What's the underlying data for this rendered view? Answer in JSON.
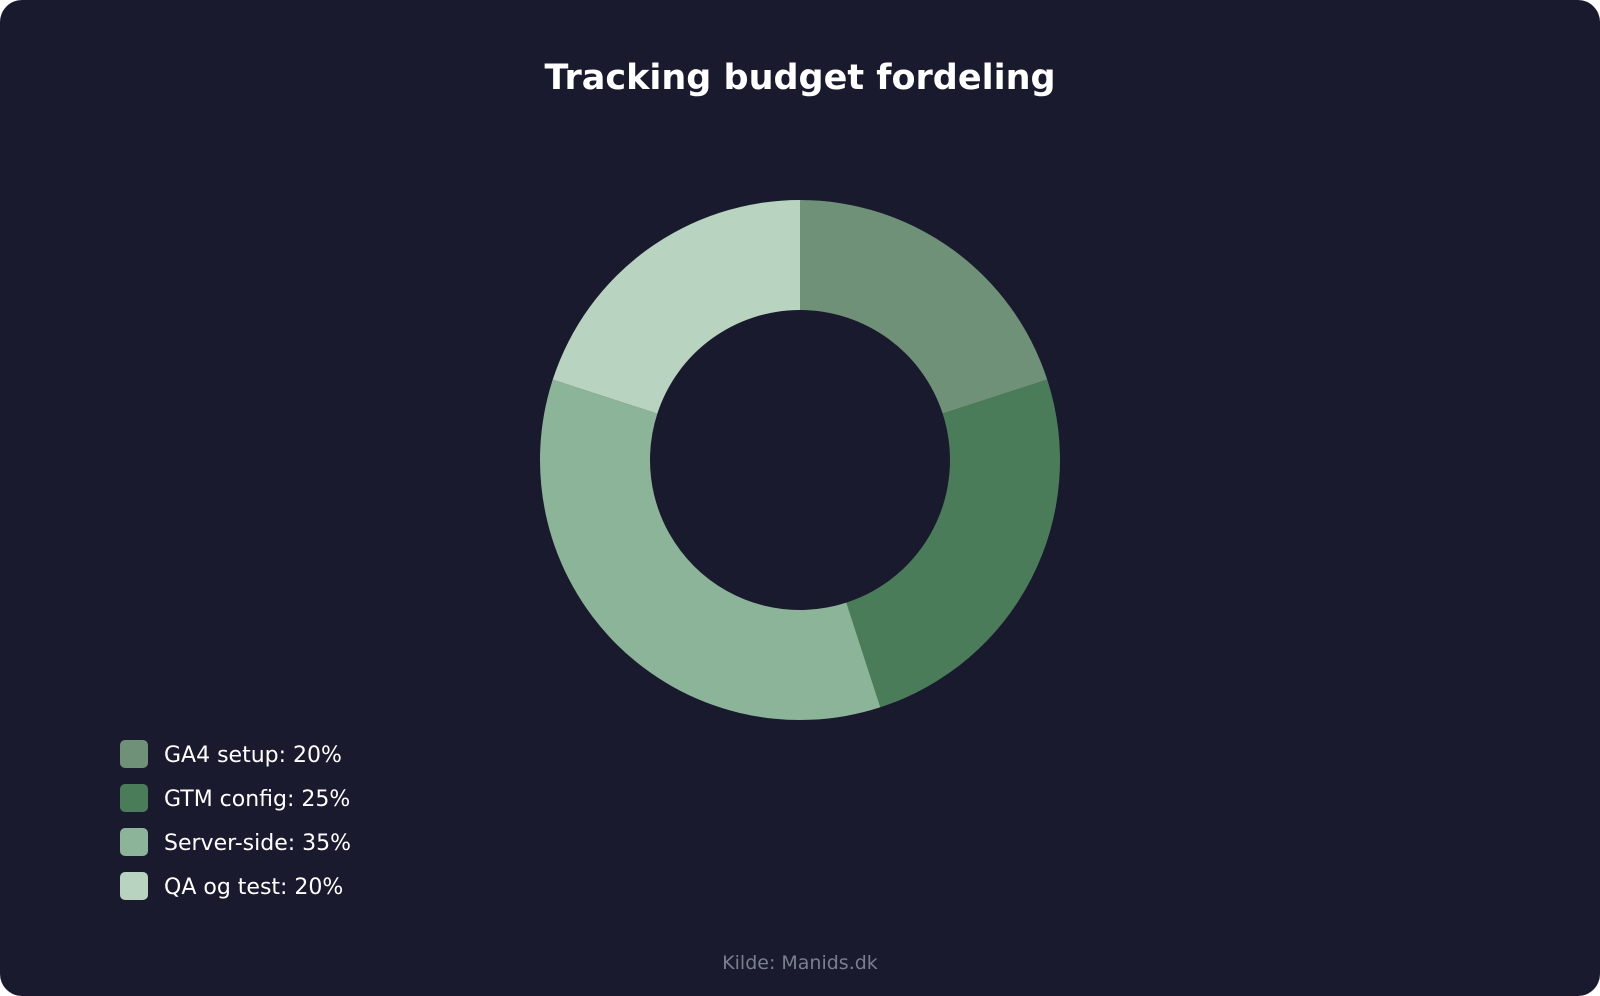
{
  "chart_data": {
    "type": "pie",
    "title": "Tracking budget fordeling",
    "categories": [
      "GA4 setup",
      "GTM config",
      "Server-side",
      "QA og test"
    ],
    "values": [
      20,
      25,
      35,
      20
    ],
    "unit": "%",
    "colors": [
      "#6e9178",
      "#4a7c5a",
      "#8cb498",
      "#b8d4c0"
    ],
    "legend": {
      "placement": "bottom-left",
      "entries": [
        {
          "label": "GA4 setup: 20%",
          "color": "#6e9178"
        },
        {
          "label": "GTM config: 25%",
          "color": "#4a7c5a"
        },
        {
          "label": "Server-side: 35%",
          "color": "#8cb498"
        },
        {
          "label": "QA og test: 20%",
          "color": "#b8d4c0"
        }
      ]
    },
    "donut": true
  },
  "footer": {
    "source": "Kilde: Manids.dk"
  },
  "colors": {
    "background": "#1a1a2e",
    "text": "#ffffff",
    "muted": "#7a7f8e"
  }
}
